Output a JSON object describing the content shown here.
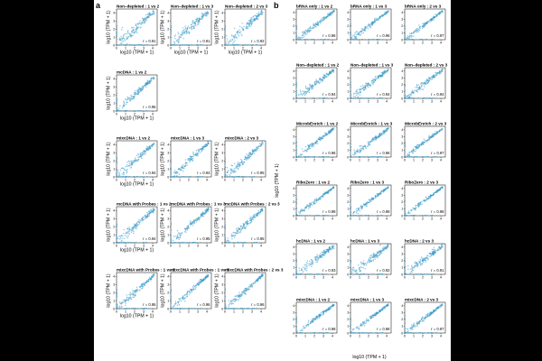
{
  "figure": {
    "panel_a_letter": "a",
    "panel_b_letter": "b",
    "axis_label": "log10 (TPM + 1)",
    "point_color": "#3a9bc9"
  },
  "chart_data": [
    {
      "type": "scatter",
      "panel": "a",
      "xlabel": "log10 (TPM + 1)",
      "ylabel": "log10 (TPM + 1)",
      "xlim": [
        0,
        4.5
      ],
      "ylim": [
        0,
        4.5
      ],
      "x_ticks": [
        0,
        1,
        2,
        3,
        4
      ],
      "y_ticks": [
        0,
        1,
        2,
        3,
        4
      ],
      "grid": false,
      "rows": [
        [
          {
            "title": "Non–depleted : 1 vs 2",
            "r": "r = 0.91"
          },
          {
            "title": "Non–depleted : 1 vs 3",
            "r": "r = 0.91"
          },
          {
            "title": "Non–depleted : 2 vs 3",
            "r": "r = 0.92"
          }
        ],
        [
          {
            "title": "mcDNA : 1 vs 2",
            "r": "r = 0.95"
          }
        ],
        [
          {
            "title": "mixcDNA : 1 vs 2",
            "r": "r = 0.94"
          },
          {
            "title": "mixcDNA : 1 vs 3",
            "r": "r = 0.94"
          },
          {
            "title": "mixcDNA : 2 vs 3",
            "r": "r = 0.95"
          }
        ],
        [
          {
            "title": "mcDNA with Probes : 1 vs 2",
            "r": "r = 0.94"
          },
          {
            "title": "mcDNA with Probes : 1 vs 3",
            "r": "r = 0.95"
          },
          {
            "title": "mcDNA with Probes : 2 vs 3",
            "r": "r = 0.95"
          }
        ],
        [
          {
            "title": "mixcDNA with Probes : 1 vs 2",
            "r": "r = 0.95"
          },
          {
            "title": "mixcDNA with Probes : 1 vs 3",
            "r": "r = 0.96"
          },
          {
            "title": "mixcDNA with Probes : 2 vs 3",
            "r": "r = 0.96"
          }
        ]
      ]
    },
    {
      "type": "scatter",
      "panel": "b",
      "xlabel": "log10 (TPM + 1)",
      "ylabel": "log10 (TPM + 1)",
      "xlim": [
        0,
        4.5
      ],
      "ylim": [
        0,
        4.5
      ],
      "x_ticks": [
        0,
        1,
        2,
        3,
        4
      ],
      "y_ticks": [
        0,
        1,
        2,
        3,
        4
      ],
      "grid": false,
      "rows": [
        [
          {
            "title": "bRNA only : 1 vs 2",
            "r": "r = 0.96"
          },
          {
            "title": "bRNA only : 1 vs 3",
            "r": "r = 0.96"
          },
          {
            "title": "bRNA only : 2 vs 3",
            "r": "r = 0.97"
          }
        ],
        [
          {
            "title": "Non–depleted : 1 vs 2",
            "r": "r = 0.94"
          },
          {
            "title": "Non–depleted : 1 vs 3",
            "r": "r = 0.94"
          },
          {
            "title": "Non–depleted : 2 vs 3",
            "r": "r = 0.94"
          }
        ],
        [
          {
            "title": "MicrobEnrich : 1 vs 2",
            "r": "r = 0.96"
          },
          {
            "title": "MicrobEnrich : 1 vs 3",
            "r": "r = 0.96"
          },
          {
            "title": "MicrobEnrich : 2 vs 3",
            "r": "r = 0.97"
          }
        ],
        [
          {
            "title": "RiboZero : 1 vs 2",
            "r": "r = 0.98"
          },
          {
            "title": "RiboZero : 1 vs 3",
            "r": "r = 0.98"
          },
          {
            "title": "RiboZero : 2 vs 3",
            "r": "r = 0.98"
          }
        ],
        [
          {
            "title": "hcDNA : 1 vs 2",
            "r": "r = 0.93"
          },
          {
            "title": "hcDNA : 1 vs 3",
            "r": "r = 0.92"
          },
          {
            "title": "hcDNA : 2 vs 3",
            "r": "r = 0.91"
          }
        ],
        [
          {
            "title": "mixcDNA : 1 vs 2",
            "r": "r = 0.98"
          },
          {
            "title": "mixcDNA : 1 vs 3",
            "r": "r = 0.98"
          },
          {
            "title": "mixcDNA : 2 vs 3",
            "r": "r = 0.97"
          }
        ]
      ]
    }
  ]
}
